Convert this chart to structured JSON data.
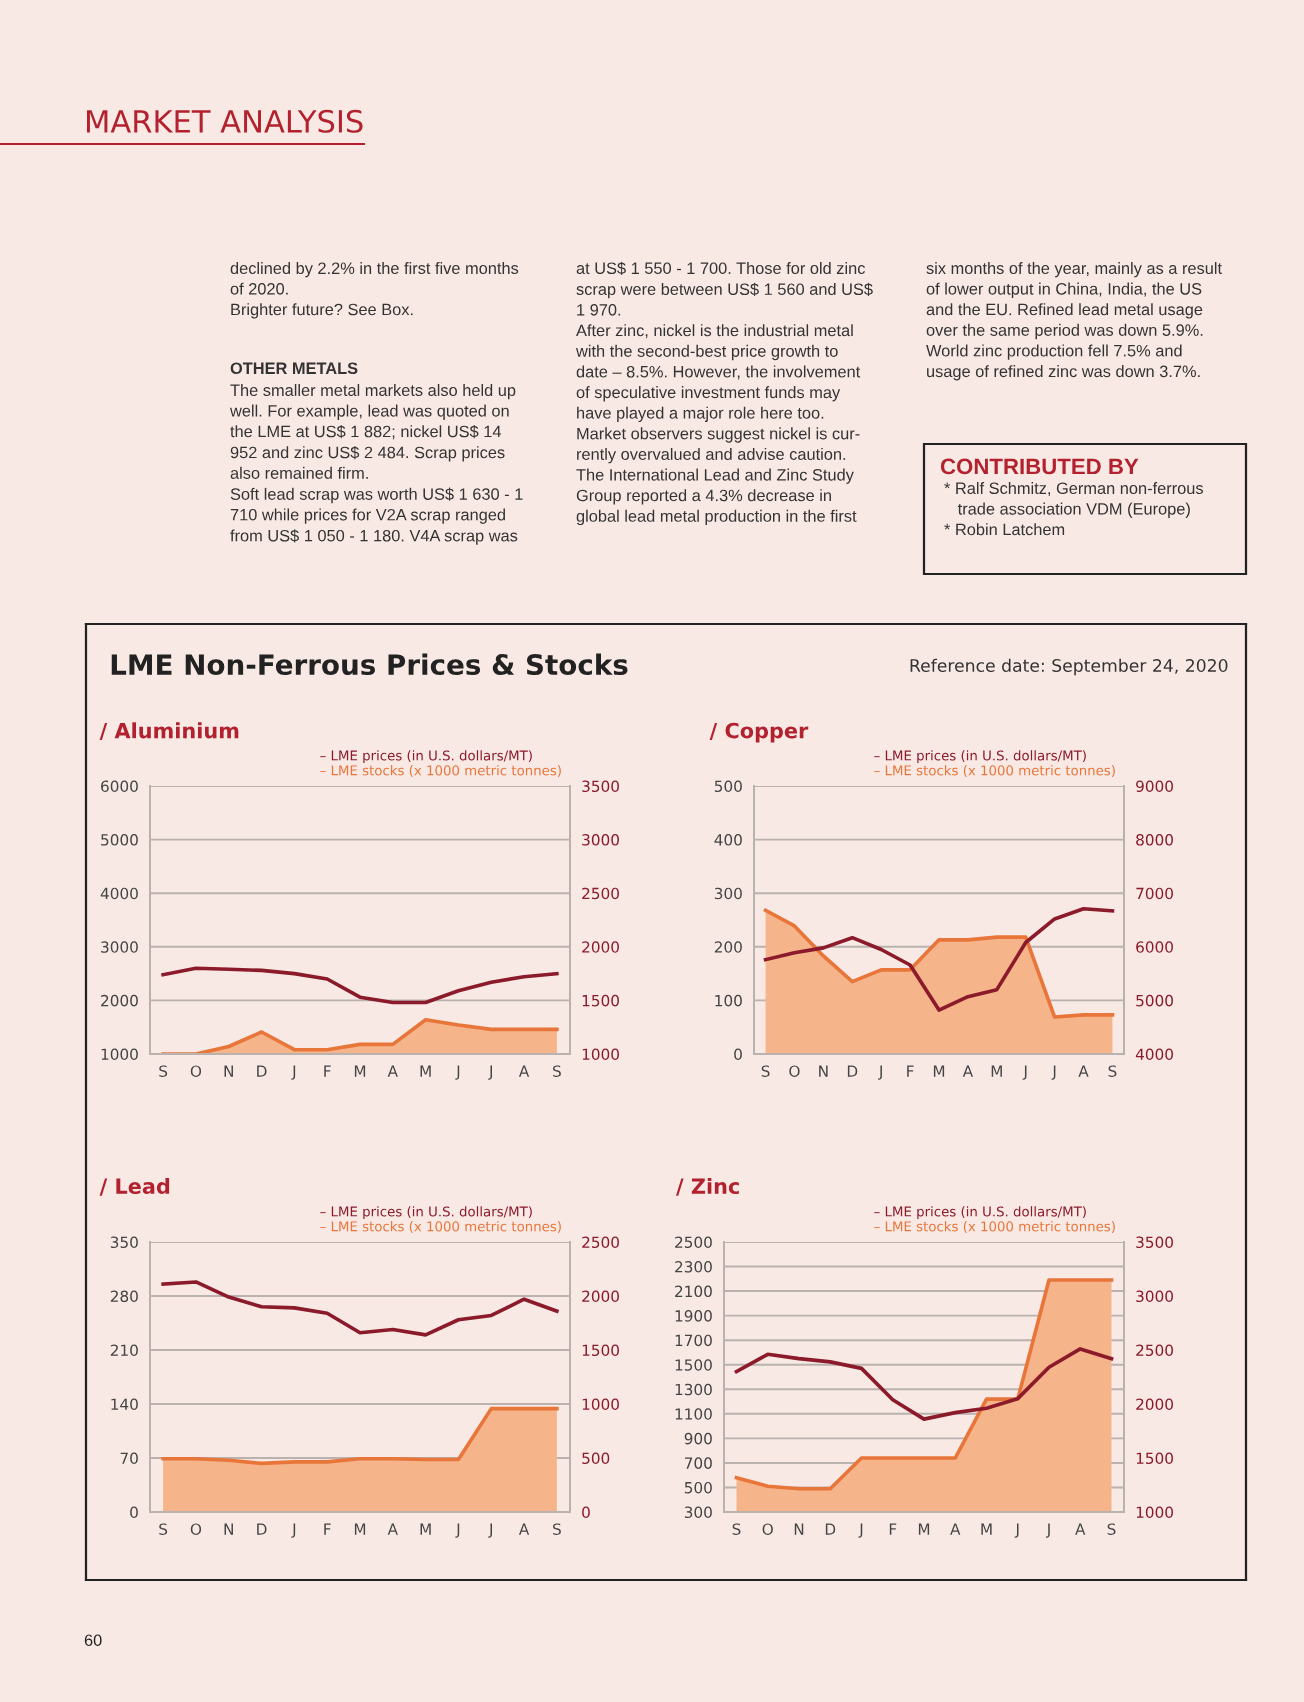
{
  "chart_data": [
    {
      "type": "other",
      "title": "MARKET ANALYSIS",
      "annotations": [
        "declined by 2.2% in the first five months\nof 2020.\nBrighter future? See Box.",
        "OTHER METALS",
        "The smaller metal markets also held up\nwell. For example, lead was quoted on\nthe LME at US$ 1 882; nickel US$ 14\n952 and zinc US$ 2 484. Scrap prices\nalso remained firm.\nSoft lead scrap was worth US$ 1 630 - 1\n710 while prices for V2A scrap ranged\nfrom US$ 1 050 - 1 180. V4A scrap was",
        "at US$ 1 550 - 1 700. Those for old zinc\nscrap were between US$ 1 560 and US$\n1 970.\nAfter zinc, nickel is the industrial metal\nwith the second-best price growth to\ndate – 8.5%. However, the involvement\nof speculative investment funds may\nhave played a major role here too.\nMarket observers suggest nickel is cur-\nrently overvalued and advise caution.\nThe International Lead and Zinc Study\nGroup reported a 4.3% decrease in\nglobal lead metal production in the first",
        "six months of the year, mainly as a result\nof lower output in China, India, the US\nand the EU. Refined lead metal usage\nover the same period was down 5.9%.\nWorld zinc production fell 7.5% and\nusage of refined zinc was down 3.7%.",
        "CONTRIBUTED BY",
        "* Ralf Schmitz, German non-ferrous\n   trade association VDM (Europe)\n* Robin Latchem",
        "60"
      ]
    },
    {
      "type": "other",
      "title": "LME Non-Ferrous Prices & Stocks",
      "subtitle": "Reference date: September 24, 2020"
    },
    {
      "type": "area",
      "title": "/ Aluminium",
      "categories": [
        "S",
        "O",
        "N",
        "D",
        "J",
        "F",
        "M",
        "A",
        "M",
        "J",
        "J",
        "A",
        "S"
      ],
      "ylim": [
        1000,
        6000
      ],
      "yticks": [
        1000,
        2000,
        3000,
        4000,
        5000,
        6000
      ],
      "y2lim": [
        1000,
        3500
      ],
      "y2ticks": [
        1000,
        1500,
        2000,
        2500,
        3000,
        3500
      ],
      "grid": "y",
      "legend": "top right",
      "series": [
        {
          "type": "area",
          "axis": "y",
          "name": "– LME stocks (x 1000 metric tonnes)",
          "color": "#e8753a",
          "values": [
            1000,
            1000,
            1140,
            1410,
            1080,
            1080,
            1180,
            1180,
            1640,
            1540,
            1460,
            1460,
            1460
          ]
        },
        {
          "type": "line",
          "axis": "y2",
          "name": "– LME prices (in U.S. dollars/MT)",
          "color": "#8b1a2b",
          "values": [
            1740,
            1800,
            1790,
            1780,
            1750,
            1700,
            1530,
            1480,
            1480,
            1590,
            1670,
            1720,
            1750
          ]
        }
      ]
    },
    {
      "type": "area",
      "title": "/ Copper",
      "categories": [
        "S",
        "O",
        "N",
        "D",
        "J",
        "F",
        "M",
        "A",
        "M",
        "J",
        "J",
        "A",
        "S"
      ],
      "ylim": [
        0,
        500
      ],
      "yticks": [
        0,
        100,
        200,
        300,
        400,
        500
      ],
      "y2lim": [
        4000,
        9000
      ],
      "y2ticks": [
        4000,
        5000,
        6000,
        7000,
        8000,
        9000
      ],
      "grid": "y",
      "legend": "top right",
      "series": [
        {
          "type": "area",
          "axis": "y",
          "name": "– LME stocks (x 1000 metric tonnes)",
          "color": "#e8753a",
          "values": [
            268,
            239,
            183,
            135,
            157,
            157,
            213,
            213,
            218,
            218,
            69,
            73,
            73
          ]
        },
        {
          "type": "line",
          "axis": "y2",
          "name": "– LME prices (in U.S. dollars/MT)",
          "color": "#8b1a2b",
          "values": [
            5760,
            5890,
            5980,
            6170,
            5950,
            5660,
            4820,
            5070,
            5200,
            6080,
            6520,
            6710,
            6670
          ]
        }
      ]
    },
    {
      "type": "area",
      "title": "/ Lead",
      "categories": [
        "S",
        "O",
        "N",
        "D",
        "J",
        "F",
        "M",
        "A",
        "M",
        "J",
        "J",
        "A",
        "S"
      ],
      "ylim": [
        0,
        350
      ],
      "yticks": [
        0,
        70,
        140,
        210,
        280,
        350
      ],
      "y2lim": [
        0,
        2500
      ],
      "y2ticks": [
        0,
        500,
        1000,
        1500,
        2000,
        2500
      ],
      "grid": "y",
      "legend": "top right",
      "series": [
        {
          "type": "area",
          "axis": "y",
          "name": "– LME stocks (x 1000 metric tonnes)",
          "color": "#e8753a",
          "values": [
            69,
            69,
            67,
            63,
            65,
            65,
            69,
            69,
            68,
            68,
            134,
            134,
            134
          ]
        },
        {
          "type": "line",
          "axis": "y2",
          "name": "– LME prices (in U.S. dollars/MT)",
          "color": "#8b1a2b",
          "values": [
            2110,
            2130,
            1990,
            1900,
            1890,
            1840,
            1660,
            1690,
            1640,
            1780,
            1820,
            1970,
            1860
          ]
        }
      ]
    },
    {
      "type": "area",
      "title": "/ Zinc",
      "categories": [
        "S",
        "O",
        "N",
        "D",
        "J",
        "F",
        "M",
        "A",
        "M",
        "J",
        "J",
        "A",
        "S"
      ],
      "ylim": [
        300,
        2500
      ],
      "yticks": [
        300,
        500,
        700,
        900,
        1100,
        1300,
        1500,
        1700,
        1900,
        2100,
        2300,
        2500
      ],
      "y2lim": [
        1000,
        3500
      ],
      "y2ticks": [
        1000,
        1500,
        2000,
        2500,
        3000,
        3500
      ],
      "grid": "y",
      "legend": "top right",
      "series": [
        {
          "type": "area",
          "axis": "y",
          "name": "– LME stocks (x 1000 metric tonnes)",
          "color": "#e8753a",
          "values": [
            580,
            510,
            490,
            490,
            740,
            740,
            740,
            740,
            1220,
            1220,
            2190,
            2190,
            2190
          ]
        },
        {
          "type": "line",
          "axis": "y2",
          "name": "– LME prices (in U.S. dollars/MT)",
          "color": "#8b1a2b",
          "values": [
            2300,
            2460,
            2420,
            2390,
            2330,
            2040,
            1860,
            1920,
            1960,
            2050,
            2340,
            2510,
            2420
          ]
        }
      ]
    }
  ]
}
